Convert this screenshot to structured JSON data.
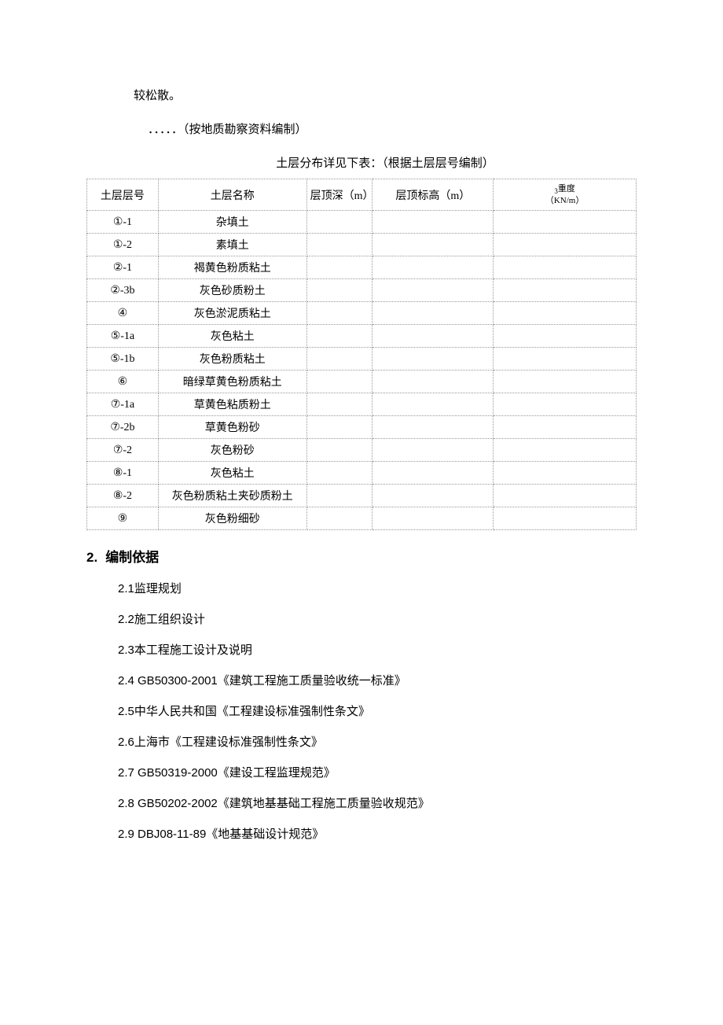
{
  "intro": {
    "line1": "较松散。",
    "line2": "．．．．．（按地质勘察资料编制）",
    "caption": "土层分布详见下表：（根据土层层号编制）"
  },
  "table": {
    "headers": {
      "col1": "土层层号",
      "col2": "土层名称",
      "col3": "层顶深（m）",
      "col4": "层顶标高（m）",
      "col5_sub": "3",
      "col5_top": "重度",
      "col5_bot": "（KN/m）"
    },
    "rows": [
      {
        "num": "①-1",
        "name": "杂填土",
        "depth": "",
        "elev": "",
        "dens": ""
      },
      {
        "num": "①-2",
        "name": "素填土",
        "depth": "",
        "elev": "",
        "dens": ""
      },
      {
        "num": "②-1",
        "name": "褐黄色粉质粘土",
        "depth": "",
        "elev": "",
        "dens": ""
      },
      {
        "num": "②-3b",
        "name": "灰色砂质粉土",
        "depth": "",
        "elev": "",
        "dens": ""
      },
      {
        "num": "④",
        "name": "灰色淤泥质粘土",
        "depth": "",
        "elev": "",
        "dens": ""
      },
      {
        "num": "⑤-1a",
        "name": "灰色粘土",
        "depth": "",
        "elev": "",
        "dens": ""
      },
      {
        "num": "⑤-1b",
        "name": "灰色粉质粘土",
        "depth": "",
        "elev": "",
        "dens": ""
      },
      {
        "num": "⑥",
        "name": "暗绿草黄色粉质粘土",
        "depth": "",
        "elev": "",
        "dens": ""
      },
      {
        "num": "⑦-1a",
        "name": "草黄色粘质粉土",
        "depth": "",
        "elev": "",
        "dens": ""
      },
      {
        "num": "⑦-2b",
        "name": "草黄色粉砂",
        "depth": "",
        "elev": "",
        "dens": ""
      },
      {
        "num": "⑦-2",
        "name": "灰色粉砂",
        "depth": "",
        "elev": "",
        "dens": ""
      },
      {
        "num": "⑧-1",
        "name": "灰色粘土",
        "depth": "",
        "elev": "",
        "dens": ""
      },
      {
        "num": "⑧-2",
        "name": "灰色粉质粘土夹砂质粉土",
        "depth": "",
        "elev": "",
        "dens": ""
      },
      {
        "num": "⑨",
        "name": "灰色粉细砂",
        "depth": "",
        "elev": "",
        "dens": ""
      }
    ]
  },
  "section": {
    "num": "2.",
    "title": "编制依据",
    "items": [
      "2.1监理规划",
      "2.2施工组织设计",
      "2.3本工程施工设计及说明",
      "2.4 GB50300-2001《建筑工程施工质量验收统一标准》",
      "2.5中华人民共和国《工程建设标准强制性条文》",
      "2.6上海市《工程建设标准强制性条文》",
      "2.7  GB50319-2000《建设工程监理规范》",
      "2.8  GB50202-2002《建筑地基基础工程施工质量验收规范》",
      "2.9  DBJ08-11-89《地基基础设计规范》"
    ]
  }
}
